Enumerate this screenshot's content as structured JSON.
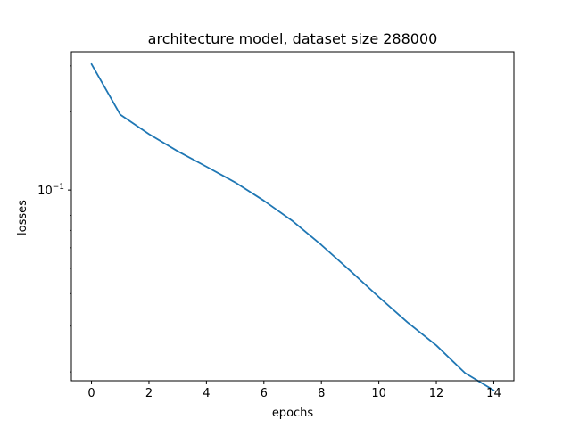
{
  "chart_data": {
    "type": "line",
    "title": "architecture model, dataset size 288000",
    "xlabel": "epochs",
    "ylabel": "losses",
    "yscale": "log",
    "xlim": [
      -0.7,
      14.7
    ],
    "ylim": [
      0.0185,
      0.34
    ],
    "grid": false,
    "x_ticks": [
      0,
      2,
      4,
      6,
      8,
      10,
      12,
      14
    ],
    "x_tick_labels": [
      "0",
      "2",
      "4",
      "6",
      "8",
      "10",
      "12",
      "14"
    ],
    "y_ticks": [
      0.1
    ],
    "y_tick_labels": [
      {
        "base": "10",
        "exp": "−1"
      }
    ],
    "series": [
      {
        "color": "#1f77b4",
        "x": [
          0,
          1,
          2,
          3,
          4,
          5,
          6,
          7,
          8,
          9,
          10,
          11,
          12,
          13,
          14
        ],
        "y": [
          0.305,
          0.195,
          0.164,
          0.141,
          0.123,
          0.107,
          0.091,
          0.076,
          0.0615,
          0.049,
          0.0388,
          0.031,
          0.0253,
          0.0198,
          0.017
        ]
      }
    ]
  }
}
